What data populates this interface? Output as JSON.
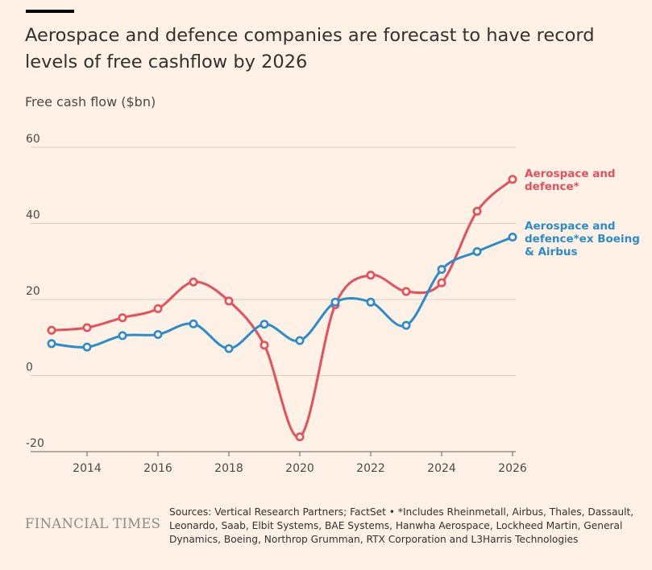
{
  "header": {
    "title": "Aerospace and defence companies are forecast to have record levels of free cashflow by 2026",
    "subtitle": "Free cash flow ($bn)"
  },
  "footer": {
    "logo": "FINANCIAL TIMES",
    "source": "Sources: Vertical Research Partners; FactSet • *Includes Rheinmetall, Airbus, Thales, Dassault, Leonardo, Saab, Elbit Systems, BAE Systems, Hanwha Aerospace, Lockheed Martin, General Dynamics, Boeing, Northrop Grumman, RTX Corporation and L3Harris Technologies"
  },
  "colors": {
    "background": "#fff1e5",
    "series_red": "#e5505c",
    "series_blue": "#2b8ccb",
    "grid": "#d9cdc1",
    "axis": "#66605c"
  },
  "chart_data": {
    "type": "line",
    "title": "Aerospace and defence companies are forecast to have record levels of free cashflow by 2026",
    "xlabel": "",
    "ylabel": "Free cash flow ($bn)",
    "x": [
      2013,
      2014,
      2015,
      2016,
      2017,
      2018,
      2019,
      2020,
      2021,
      2022,
      2023,
      2024,
      2025,
      2026
    ],
    "xlim": [
      2013,
      2026
    ],
    "ylim": [
      -20,
      60
    ],
    "xticks": [
      "2014",
      "2016",
      "2018",
      "2020",
      "2022",
      "2024",
      "2026"
    ],
    "yticks": [
      "60",
      "40",
      "20",
      "0",
      "-20"
    ],
    "grid": true,
    "series": [
      {
        "name": "Aerospace and defence*",
        "label_lines": [
          "Aerospace and",
          "defence*"
        ],
        "color": "#e5505c",
        "values": [
          11.9,
          12.6,
          15.2,
          17.6,
          24.6,
          19.6,
          8.0,
          -16.1,
          18.6,
          26.4,
          22.1,
          24.4,
          43.2,
          51.6
        ]
      },
      {
        "name": "Aerospace and defence*ex Boeing & Airbus",
        "label_lines": [
          "Aerospace and",
          "defence*ex Boeing",
          "& Airbus"
        ],
        "color": "#2b8ccb",
        "values": [
          8.4,
          7.5,
          10.5,
          10.8,
          13.6,
          7.1,
          13.5,
          9.2,
          19.3,
          19.3,
          13.2,
          27.9,
          32.6,
          36.4
        ]
      }
    ]
  }
}
